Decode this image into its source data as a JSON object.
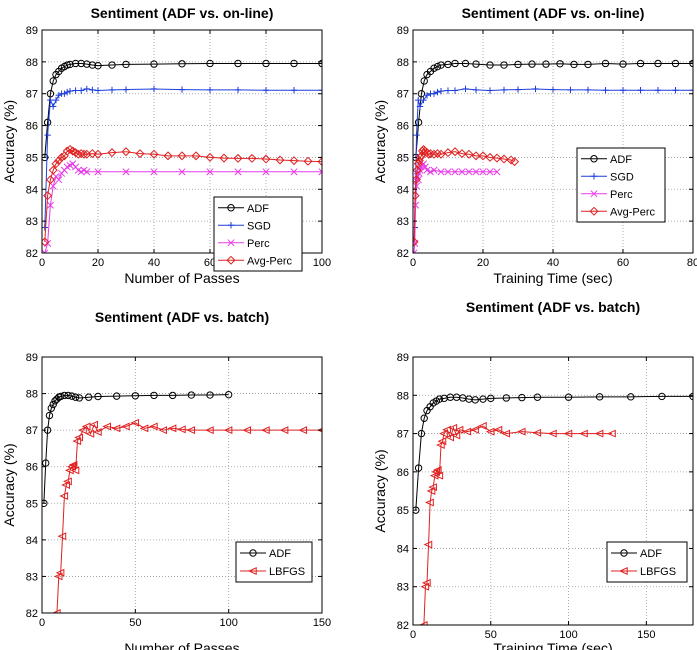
{
  "figure": {
    "colors": {
      "ADF": "#000000",
      "SGD": "#1f3fdc",
      "Perc": "#e83ce8",
      "Avg-Perc": "#e02020",
      "LBFGS": "#e02020",
      "grid": "#9a9a9a"
    },
    "markers": {
      "ADF": "circle",
      "SGD": "plus",
      "Perc": "cross",
      "Avg-Perc": "diamond",
      "LBFGS": "left-triangle"
    },
    "marker_icons": [
      "circle-marker-icon",
      "plus-marker-icon",
      "cross-marker-icon",
      "diamond-marker-icon",
      "left-triangle-marker-icon"
    ]
  },
  "chart_data": [
    {
      "type": "line",
      "title": "Sentiment (ADF vs. on-line)",
      "xlabel": "Number of Passes",
      "ylabel": "Accuracy (%)",
      "xlim": [
        0,
        100
      ],
      "ylim": [
        82,
        89
      ],
      "xticks": [
        0,
        20,
        40,
        60,
        80,
        100
      ],
      "yticks": [
        82,
        83,
        84,
        85,
        86,
        87,
        88,
        89
      ],
      "grid": true,
      "legend_position": "lower-right",
      "series": [
        {
          "name": "ADF",
          "x": [
            1,
            2,
            3,
            4,
            5,
            6,
            7,
            8,
            9,
            10,
            12,
            14,
            16,
            18,
            20,
            25,
            30,
            40,
            50,
            60,
            70,
            80,
            90,
            100
          ],
          "y": [
            85.0,
            86.1,
            87.0,
            87.4,
            87.6,
            87.7,
            87.8,
            87.85,
            87.9,
            87.92,
            87.95,
            87.95,
            87.93,
            87.9,
            87.88,
            87.9,
            87.92,
            87.93,
            87.94,
            87.95,
            87.95,
            87.95,
            87.95,
            87.95
          ]
        },
        {
          "name": "SGD",
          "x": [
            1,
            2,
            3,
            4,
            5,
            6,
            7,
            8,
            9,
            10,
            12,
            14,
            16,
            18,
            20,
            25,
            30,
            40,
            50,
            60,
            70,
            80,
            90,
            100
          ],
          "y": [
            82.8,
            85.7,
            86.8,
            86.6,
            86.8,
            86.95,
            87.0,
            87.0,
            87.05,
            87.08,
            87.1,
            87.1,
            87.15,
            87.12,
            87.1,
            87.12,
            87.13,
            87.15,
            87.13,
            87.12,
            87.12,
            87.11,
            87.11,
            87.11
          ]
        },
        {
          "name": "Perc",
          "x": [
            1,
            2,
            3,
            4,
            5,
            6,
            7,
            8,
            9,
            10,
            11,
            12,
            13,
            14,
            15,
            16,
            20,
            30,
            40,
            50,
            60,
            70,
            80,
            90,
            100
          ],
          "y": [
            82.0,
            82.3,
            83.5,
            84.1,
            84.4,
            84.3,
            84.5,
            84.6,
            84.7,
            84.75,
            84.8,
            84.7,
            84.6,
            84.55,
            84.6,
            84.55,
            84.55,
            84.55,
            84.55,
            84.55,
            84.55,
            84.55,
            84.55,
            84.55,
            84.55
          ]
        },
        {
          "name": "Avg-Perc",
          "x": [
            1,
            2,
            3,
            4,
            5,
            6,
            7,
            8,
            9,
            10,
            11,
            12,
            13,
            14,
            15,
            16,
            18,
            20,
            25,
            30,
            35,
            40,
            45,
            50,
            55,
            60,
            65,
            70,
            75,
            80,
            85,
            90,
            95,
            100
          ],
          "y": [
            82.35,
            83.8,
            84.3,
            84.6,
            84.8,
            84.9,
            85.0,
            85.05,
            85.2,
            85.25,
            85.2,
            85.15,
            85.1,
            85.12,
            85.1,
            85.1,
            85.12,
            85.1,
            85.15,
            85.18,
            85.12,
            85.1,
            85.05,
            85.05,
            85.05,
            85.0,
            84.98,
            84.97,
            84.97,
            84.95,
            84.92,
            84.9,
            84.88,
            84.87
          ]
        }
      ]
    },
    {
      "type": "line",
      "title": "Sentiment (ADF vs. on-line)",
      "xlabel": "Training Time (sec)",
      "ylabel": "Accuracy (%)",
      "xlim": [
        0,
        80
      ],
      "ylim": [
        82,
        89
      ],
      "xticks": [
        0,
        20,
        40,
        60,
        80
      ],
      "yticks": [
        82,
        83,
        84,
        85,
        86,
        87,
        88,
        89
      ],
      "grid": true,
      "legend_position": "right",
      "series": [
        {
          "name": "ADF",
          "x": [
            0.8,
            1.6,
            2.4,
            3.2,
            4,
            5,
            6,
            7,
            8,
            10,
            12,
            15,
            18,
            22,
            26,
            30,
            34,
            38,
            42,
            46,
            50,
            55,
            60,
            65,
            70,
            75,
            80
          ],
          "y": [
            85.0,
            86.1,
            87.0,
            87.4,
            87.6,
            87.7,
            87.8,
            87.85,
            87.9,
            87.92,
            87.95,
            87.95,
            87.93,
            87.9,
            87.9,
            87.92,
            87.93,
            87.93,
            87.94,
            87.92,
            87.92,
            87.95,
            87.93,
            87.95,
            87.95,
            87.95,
            87.95
          ]
        },
        {
          "name": "SGD",
          "x": [
            0.5,
            1,
            1.5,
            2,
            3,
            4,
            5,
            6,
            7,
            8,
            10,
            12,
            15,
            18,
            22,
            26,
            30,
            35,
            40,
            45,
            50,
            55,
            60,
            65,
            70,
            75,
            80
          ],
          "y": [
            82.8,
            85.7,
            86.8,
            86.6,
            86.8,
            86.95,
            87.0,
            87.0,
            87.05,
            87.08,
            87.1,
            87.1,
            87.15,
            87.12,
            87.1,
            87.12,
            87.13,
            87.15,
            87.13,
            87.12,
            87.12,
            87.11,
            87.11,
            87.11,
            87.11,
            87.11,
            87.11
          ]
        },
        {
          "name": "Perc",
          "x": [
            0.25,
            0.5,
            0.75,
            1,
            1.25,
            1.5,
            1.75,
            2,
            2.3,
            2.6,
            3,
            3.5,
            4,
            5,
            6,
            8,
            10,
            12,
            14,
            16,
            18,
            20,
            22,
            24
          ],
          "y": [
            82.0,
            82.3,
            83.5,
            84.1,
            84.4,
            84.3,
            84.5,
            84.6,
            84.7,
            84.75,
            84.8,
            84.7,
            84.6,
            84.55,
            84.6,
            84.55,
            84.55,
            84.55,
            84.55,
            84.55,
            84.55,
            84.55,
            84.55,
            84.55
          ]
        },
        {
          "name": "Avg-Perc",
          "x": [
            0.3,
            0.6,
            0.9,
            1.2,
            1.5,
            1.8,
            2.1,
            2.4,
            2.7,
            3,
            3.5,
            4,
            4.5,
            5,
            6,
            7,
            8,
            10,
            12,
            14,
            16,
            18,
            20,
            22,
            24,
            26,
            28,
            29
          ],
          "y": [
            82.35,
            83.8,
            84.3,
            84.6,
            84.8,
            84.9,
            85.0,
            85.05,
            85.2,
            85.25,
            85.2,
            85.15,
            85.1,
            85.12,
            85.1,
            85.12,
            85.1,
            85.15,
            85.18,
            85.12,
            85.1,
            85.05,
            85.05,
            85.0,
            84.98,
            84.95,
            84.92,
            84.87
          ]
        }
      ]
    },
    {
      "type": "line",
      "title": "Sentiment (ADF vs. batch)",
      "xlabel": "Number of Passes",
      "ylabel": "Accuracy (%)",
      "xlim": [
        0,
        150
      ],
      "ylim": [
        82,
        89
      ],
      "xticks": [
        0,
        50,
        100,
        150
      ],
      "yticks": [
        82,
        83,
        84,
        85,
        86,
        87,
        88,
        89
      ],
      "grid": true,
      "legend_position": "lower-right",
      "series": [
        {
          "name": "ADF",
          "x": [
            1,
            2,
            3,
            4,
            5,
            6,
            7,
            8,
            9,
            10,
            12,
            14,
            16,
            18,
            20,
            25,
            30,
            40,
            50,
            60,
            70,
            80,
            90,
            100
          ],
          "y": [
            85.0,
            86.1,
            87.0,
            87.4,
            87.6,
            87.7,
            87.8,
            87.85,
            87.9,
            87.92,
            87.95,
            87.95,
            87.93,
            87.9,
            87.88,
            87.9,
            87.92,
            87.93,
            87.94,
            87.95,
            87.95,
            87.96,
            87.96,
            87.97
          ]
        },
        {
          "name": "LBFGS",
          "x": [
            8,
            9,
            10,
            11,
            12,
            13,
            14,
            15,
            16,
            17,
            18,
            19,
            20,
            22,
            24,
            26,
            28,
            30,
            35,
            40,
            45,
            50,
            55,
            60,
            65,
            70,
            75,
            80,
            90,
            100,
            110,
            120,
            130,
            140,
            150
          ],
          "y": [
            82.0,
            83.0,
            83.1,
            84.1,
            85.2,
            85.5,
            85.6,
            85.9,
            86.0,
            86.05,
            85.9,
            86.7,
            86.8,
            87.0,
            87.1,
            86.9,
            87.15,
            86.95,
            87.1,
            87.05,
            87.1,
            87.2,
            87.05,
            87.1,
            87.0,
            87.05,
            87.02,
            87.0,
            87.0,
            87.0,
            87.0,
            87.0,
            87.0,
            87.0,
            87.0
          ]
        }
      ]
    },
    {
      "type": "line",
      "title": "Sentiment (ADF vs. batch)",
      "xlabel": "Training Time (sec)",
      "ylabel": "Accuracy (%)",
      "xlim": [
        0,
        180
      ],
      "ylim": [
        82,
        89
      ],
      "xticks": [
        0,
        50,
        100,
        150
      ],
      "yticks": [
        82,
        83,
        84,
        85,
        86,
        87,
        88,
        89
      ],
      "grid": true,
      "legend_position": "lower-right",
      "series": [
        {
          "name": "ADF",
          "x": [
            1.8,
            3.6,
            5.4,
            7.2,
            9,
            11,
            13,
            15,
            17,
            20,
            24,
            28,
            32,
            36,
            40,
            45,
            50,
            60,
            70,
            80,
            100,
            120,
            140,
            160,
            180
          ],
          "y": [
            85.0,
            86.1,
            87.0,
            87.4,
            87.6,
            87.7,
            87.8,
            87.85,
            87.9,
            87.92,
            87.95,
            87.95,
            87.93,
            87.9,
            87.88,
            87.9,
            87.92,
            87.93,
            87.94,
            87.95,
            87.95,
            87.96,
            87.96,
            87.97,
            87.97
          ]
        },
        {
          "name": "LBFGS",
          "x": [
            7,
            8,
            9,
            10,
            11,
            12,
            13,
            14,
            15,
            16,
            17,
            18,
            19,
            20,
            22,
            24,
            26,
            28,
            30,
            35,
            40,
            45,
            50,
            55,
            60,
            70,
            80,
            90,
            100,
            110,
            120,
            128
          ],
          "y": [
            82.0,
            83.0,
            83.1,
            84.1,
            85.2,
            85.5,
            85.6,
            85.9,
            86.0,
            86.05,
            85.9,
            86.7,
            86.8,
            87.0,
            87.1,
            86.9,
            87.15,
            86.95,
            87.1,
            87.05,
            87.1,
            87.2,
            87.05,
            87.1,
            87.0,
            87.05,
            87.02,
            87.0,
            87.0,
            87.0,
            87.0,
            87.0
          ]
        }
      ]
    }
  ]
}
